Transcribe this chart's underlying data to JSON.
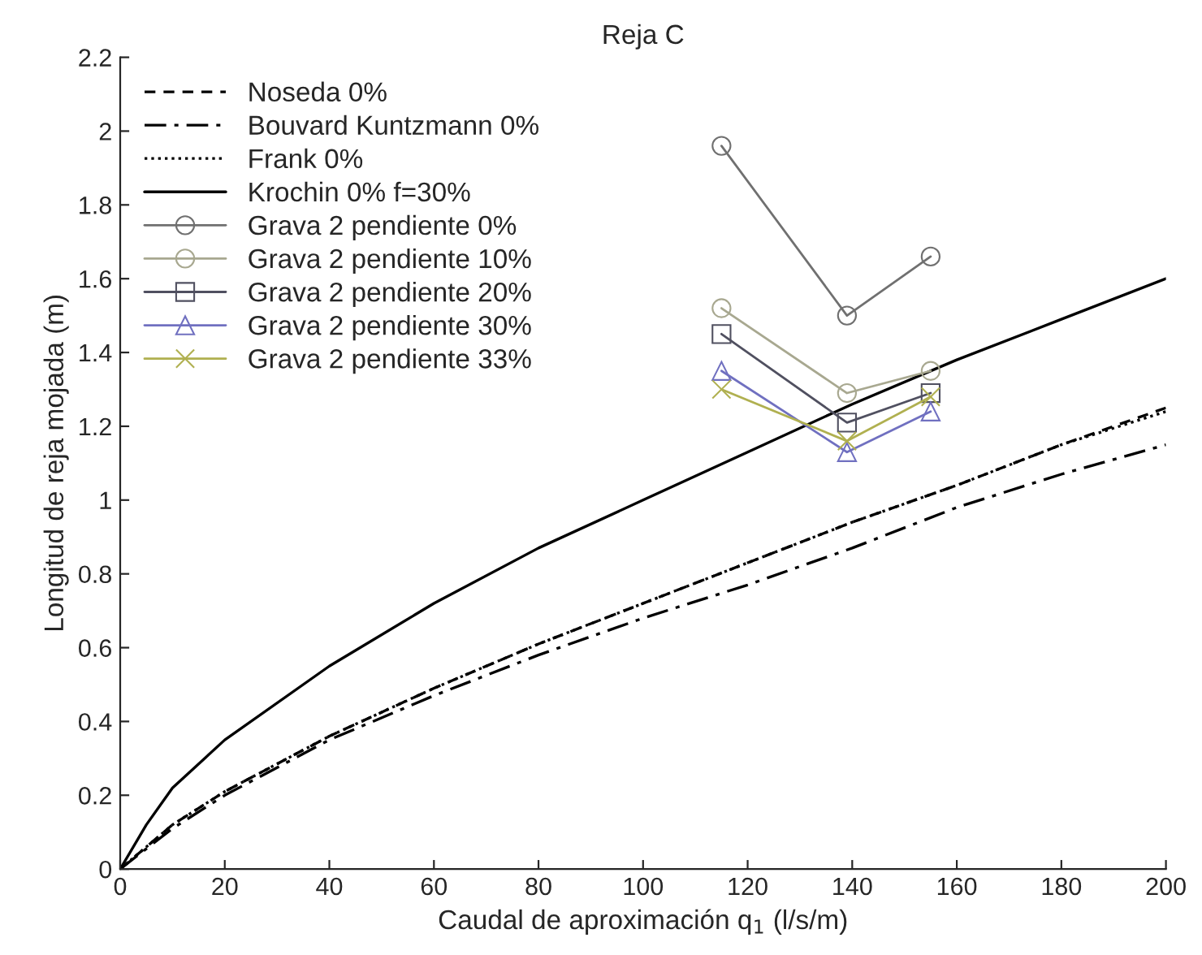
{
  "chart_data": {
    "type": "line",
    "title": "Reja C",
    "xlabel": "Caudal de aproximación q$_{1}$ (l/s/m)",
    "ylabel": "Longitud de reja mojada (m)",
    "xlim": [
      0,
      200
    ],
    "ylim": [
      0,
      2.2
    ],
    "xticks": [
      0,
      20,
      40,
      60,
      80,
      100,
      120,
      140,
      160,
      180,
      200
    ],
    "yticks": [
      0,
      0.2,
      0.4,
      0.6,
      0.8,
      1,
      1.2,
      1.4,
      1.6,
      1.8,
      2,
      2.2
    ],
    "grid": false,
    "legend": "top left",
    "series": [
      {
        "name": "Noseda 0%",
        "color": "#000000",
        "line_style": "dashed",
        "marker": "none",
        "x": [
          0,
          10,
          20,
          40,
          60,
          80,
          100,
          120,
          140,
          160,
          180,
          200
        ],
        "values": [
          0,
          0.12,
          0.21,
          0.36,
          0.49,
          0.61,
          0.72,
          0.83,
          0.94,
          1.04,
          1.15,
          1.25
        ]
      },
      {
        "name": "Bouvard Kuntzmann 0%",
        "color": "#000000",
        "line_style": "dashdot",
        "marker": "none",
        "x": [
          0,
          10,
          20,
          40,
          60,
          80,
          100,
          120,
          140,
          160,
          180,
          200
        ],
        "values": [
          0,
          0.11,
          0.2,
          0.35,
          0.47,
          0.58,
          0.68,
          0.77,
          0.87,
          0.98,
          1.07,
          1.15
        ]
      },
      {
        "name": "Frank 0%",
        "color": "#000000",
        "line_style": "dotted",
        "marker": "none",
        "x": [
          0,
          10,
          20,
          40,
          60,
          80,
          100,
          120,
          140,
          160,
          180,
          200
        ],
        "values": [
          0,
          0.12,
          0.21,
          0.36,
          0.49,
          0.61,
          0.72,
          0.83,
          0.94,
          1.04,
          1.15,
          1.24
        ]
      },
      {
        "name": "Krochin 0% f=30%",
        "color": "#000000",
        "line_style": "solid",
        "marker": "none",
        "x": [
          0,
          5,
          10,
          20,
          40,
          60,
          80,
          100,
          120,
          140,
          160,
          180,
          200
        ],
        "values": [
          0,
          0.12,
          0.22,
          0.35,
          0.55,
          0.72,
          0.87,
          1.0,
          1.13,
          1.26,
          1.38,
          1.49,
          1.6
        ]
      },
      {
        "name": "Grava 2 pendiente 0%",
        "color": "#707070",
        "line_style": "solid",
        "marker": "circle",
        "x": [
          115,
          139,
          155
        ],
        "values": [
          1.96,
          1.5,
          1.66
        ]
      },
      {
        "name": "Grava 2 pendiente 10%",
        "color": "#a8a890",
        "line_style": "solid",
        "marker": "circle",
        "x": [
          115,
          139,
          155
        ],
        "values": [
          1.52,
          1.29,
          1.35
        ]
      },
      {
        "name": "Grava 2 pendiente 20%",
        "color": "#505060",
        "line_style": "solid",
        "marker": "square",
        "x": [
          115,
          139,
          155
        ],
        "values": [
          1.45,
          1.21,
          1.29
        ]
      },
      {
        "name": "Grava 2 pendiente 30%",
        "color": "#7070c0",
        "line_style": "solid",
        "marker": "triangle",
        "x": [
          115,
          139,
          155
        ],
        "values": [
          1.35,
          1.13,
          1.24
        ]
      },
      {
        "name": "Grava 2 pendiente 33%",
        "color": "#b0b050",
        "line_style": "solid",
        "marker": "cross",
        "x": [
          115,
          139,
          155
        ],
        "values": [
          1.3,
          1.16,
          1.28
        ]
      }
    ]
  }
}
